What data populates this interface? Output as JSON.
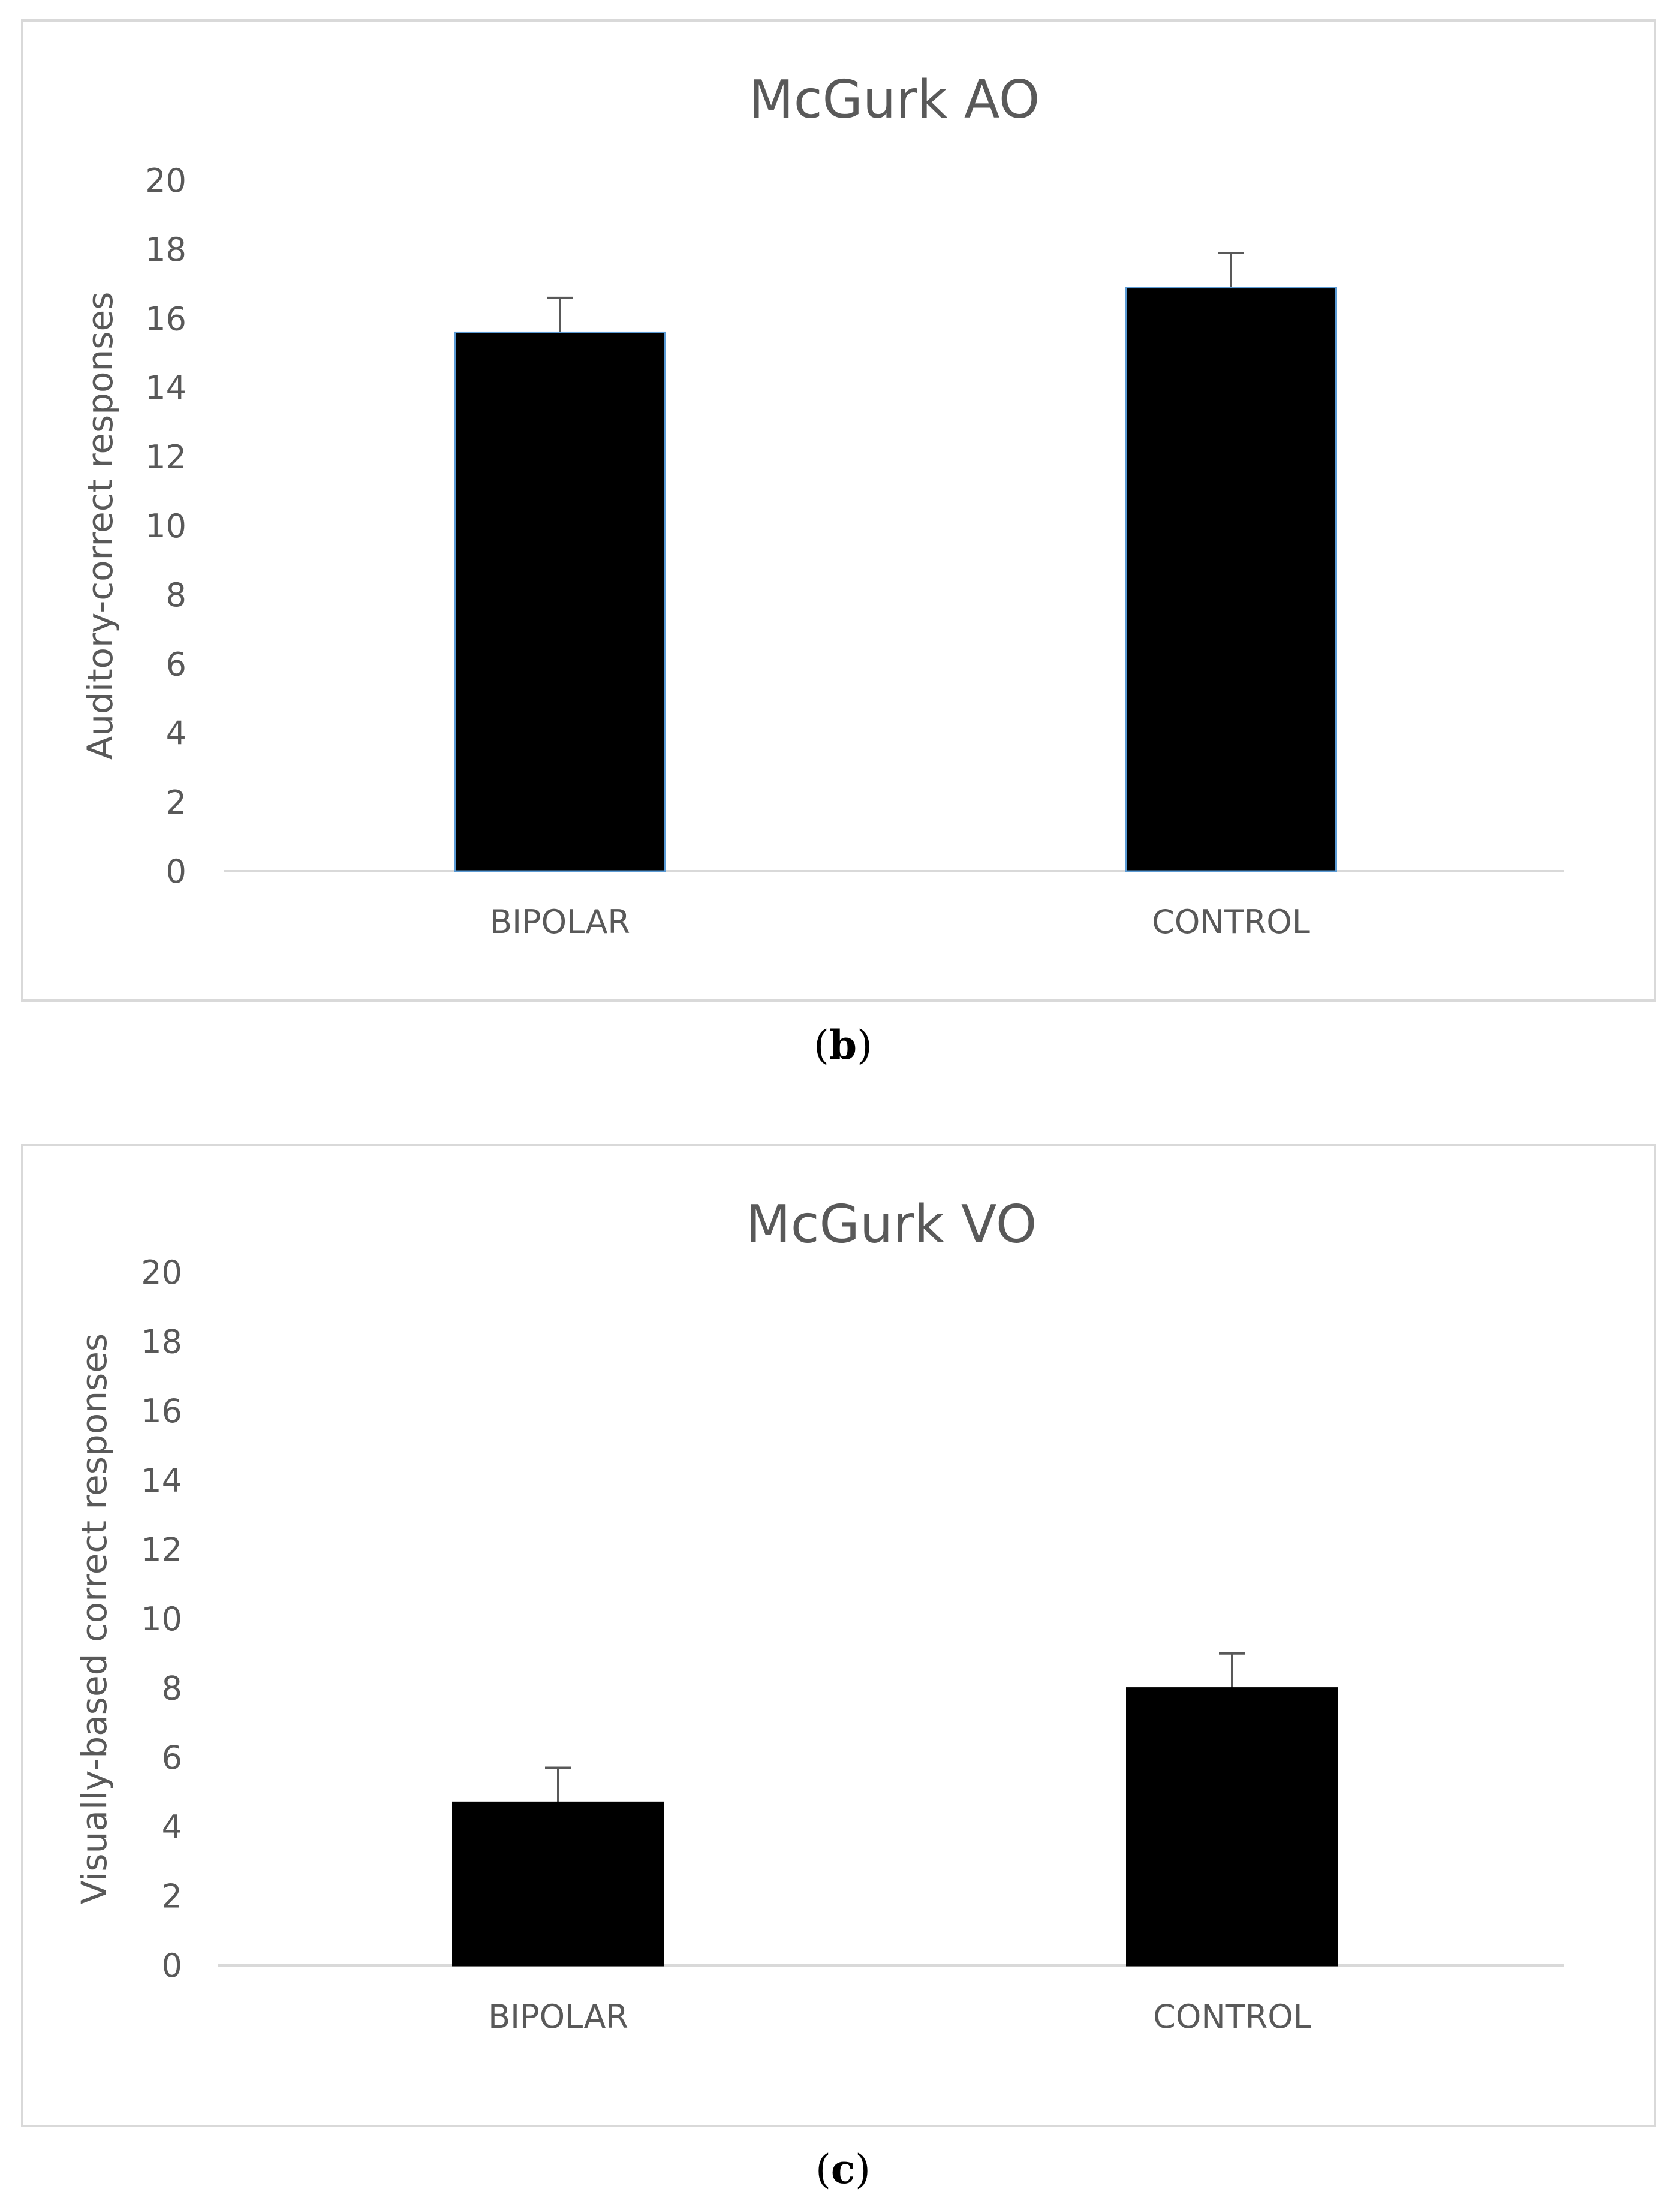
{
  "chart_data": [
    {
      "type": "bar",
      "title": "McGurk AO",
      "categories": [
        "BIPOLAR",
        "CONTROL"
      ],
      "values": [
        15.6,
        16.9
      ],
      "error_bars": [
        1.0,
        1.0
      ],
      "ylabel": "Auditory-correct responses",
      "xlabel": "",
      "ylim": [
        0,
        20
      ],
      "yticks": [
        "0",
        "2",
        "4",
        "6",
        "8",
        "10",
        "12",
        "14",
        "16",
        "18",
        "20"
      ],
      "grid": false,
      "legend": "none",
      "bar_color": "#000000",
      "bar_outline_color": "#5b9bd5"
    },
    {
      "type": "bar",
      "title": "McGurk VO",
      "categories": [
        "BIPOLAR",
        "CONTROL"
      ],
      "values": [
        4.7,
        8.0
      ],
      "error_bars": [
        1.0,
        1.0
      ],
      "ylabel": "Visually-based correct responses",
      "xlabel": "",
      "ylim": [
        0,
        20
      ],
      "yticks": [
        "0",
        "2",
        "4",
        "6",
        "8",
        "10",
        "12",
        "14",
        "16",
        "18",
        "20"
      ],
      "grid": false,
      "legend": "none",
      "bar_color": "#000000",
      "bar_outline_color": "#000000"
    }
  ],
  "captions": [
    {
      "open": "(",
      "letter": "b",
      "close": ")"
    },
    {
      "open": "(",
      "letter": "c",
      "close": ")"
    }
  ]
}
